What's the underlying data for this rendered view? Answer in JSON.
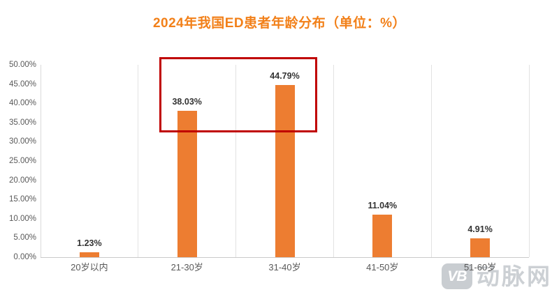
{
  "title": "2024年我国ED患者年龄分布（单位：%）",
  "chart_data": {
    "type": "bar",
    "title": "2024年我国ED患者年龄分布（单位：%）",
    "categories": [
      "20岁以内",
      "21-30岁",
      "31-40岁",
      "41-50岁",
      "51-60岁"
    ],
    "values": [
      1.23,
      38.03,
      44.79,
      11.04,
      4.91
    ],
    "value_labels": [
      "1.23%",
      "38.03%",
      "44.79%",
      "11.04%",
      "4.91%"
    ],
    "xlabel": "",
    "ylabel": "",
    "ylim": [
      0,
      50
    ],
    "y_ticks": [
      0,
      5,
      10,
      15,
      20,
      25,
      30,
      35,
      40,
      45,
      50
    ],
    "y_tick_labels": [
      "0.00%",
      "5.00%",
      "10.00%",
      "15.00%",
      "20.00%",
      "25.00%",
      "30.00%",
      "35.00%",
      "40.00%",
      "45.00%",
      "50.00%"
    ],
    "grid": "vertical category separators only",
    "legend": "none",
    "annotations": [
      {
        "type": "rectangle-highlight",
        "categories": [
          "21-30岁",
          "31-40岁"
        ],
        "color": "#C00000"
      }
    ]
  },
  "watermark": {
    "logo_text": "VB",
    "text": "动脉网"
  },
  "colors": {
    "title": "#F28019",
    "bar": "#ED7D31",
    "highlight_box": "#C00000",
    "axis_text": "#595959",
    "data_label": "#333333",
    "gridline": "#E2E2E2",
    "watermark": "#C9CDD1"
  }
}
